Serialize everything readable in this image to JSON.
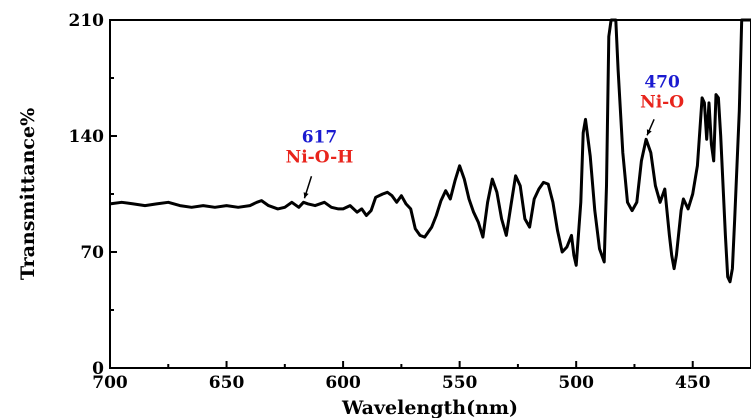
{
  "chart_data": {
    "type": "line",
    "xlabel": "Wavelength(nm)",
    "ylabel": "Transmittance%",
    "xlim": [
      700,
      425
    ],
    "ylim": [
      0,
      210
    ],
    "x_ticks": [
      700,
      650,
      600,
      550,
      500,
      450
    ],
    "y_ticks": [
      0,
      70,
      140,
      210
    ],
    "grid": false,
    "colors": {
      "line": "#000000",
      "number": "#1a1ad0",
      "label": "#e8241c"
    },
    "series": [
      {
        "points": [
          [
            700,
            99
          ],
          [
            695,
            100
          ],
          [
            690,
            99
          ],
          [
            685,
            98
          ],
          [
            680,
            99
          ],
          [
            675,
            100
          ],
          [
            670,
            98
          ],
          [
            665,
            97
          ],
          [
            660,
            98
          ],
          [
            655,
            97
          ],
          [
            650,
            98
          ],
          [
            645,
            97
          ],
          [
            640,
            98
          ],
          [
            637,
            100
          ],
          [
            635,
            101
          ],
          [
            632,
            98
          ],
          [
            628,
            96
          ],
          [
            625,
            97
          ],
          [
            622,
            100
          ],
          [
            619,
            97
          ],
          [
            617,
            100
          ],
          [
            615,
            99
          ],
          [
            612,
            98
          ],
          [
            608,
            100
          ],
          [
            605,
            97
          ],
          [
            602,
            96
          ],
          [
            600,
            96
          ],
          [
            597,
            98
          ],
          [
            594,
            94
          ],
          [
            592,
            96
          ],
          [
            590,
            92
          ],
          [
            588,
            95
          ],
          [
            586,
            103
          ],
          [
            583,
            105
          ],
          [
            581,
            106
          ],
          [
            579,
            104
          ],
          [
            577,
            100
          ],
          [
            575,
            104
          ],
          [
            573,
            99
          ],
          [
            571,
            96
          ],
          [
            569,
            84
          ],
          [
            567,
            80
          ],
          [
            565,
            79
          ],
          [
            562,
            85
          ],
          [
            560,
            92
          ],
          [
            558,
            101
          ],
          [
            556,
            107
          ],
          [
            554,
            102
          ],
          [
            552,
            113
          ],
          [
            550,
            122
          ],
          [
            548,
            114
          ],
          [
            546,
            102
          ],
          [
            544,
            94
          ],
          [
            542,
            88
          ],
          [
            540,
            79
          ],
          [
            538,
            100
          ],
          [
            536,
            114
          ],
          [
            534,
            106
          ],
          [
            532,
            90
          ],
          [
            530,
            80
          ],
          [
            528,
            98
          ],
          [
            526,
            116
          ],
          [
            524,
            110
          ],
          [
            522,
            90
          ],
          [
            520,
            85
          ],
          [
            518,
            102
          ],
          [
            516,
            108
          ],
          [
            514,
            112
          ],
          [
            512,
            111
          ],
          [
            510,
            100
          ],
          [
            508,
            83
          ],
          [
            506,
            70
          ],
          [
            504,
            73
          ],
          [
            502,
            80
          ],
          [
            501,
            68
          ],
          [
            500,
            62
          ],
          [
            498,
            100
          ],
          [
            497,
            142
          ],
          [
            496,
            150
          ],
          [
            494,
            128
          ],
          [
            492,
            95
          ],
          [
            490,
            72
          ],
          [
            488,
            64
          ],
          [
            487,
            110
          ],
          [
            486,
            200
          ],
          [
            485,
            210
          ],
          [
            484,
            210
          ],
          [
            483,
            210
          ],
          [
            482,
            180
          ],
          [
            480,
            130
          ],
          [
            478,
            100
          ],
          [
            476,
            95
          ],
          [
            474,
            100
          ],
          [
            472,
            125
          ],
          [
            470,
            138
          ],
          [
            468,
            130
          ],
          [
            466,
            110
          ],
          [
            464,
            100
          ],
          [
            462,
            108
          ],
          [
            460,
            80
          ],
          [
            459,
            68
          ],
          [
            458,
            60
          ],
          [
            457,
            68
          ],
          [
            455,
            95
          ],
          [
            454,
            102
          ],
          [
            452,
            96
          ],
          [
            450,
            105
          ],
          [
            448,
            122
          ],
          [
            446,
            163
          ],
          [
            445,
            160
          ],
          [
            444,
            138
          ],
          [
            443,
            160
          ],
          [
            442,
            135
          ],
          [
            441,
            125
          ],
          [
            440,
            165
          ],
          [
            439,
            163
          ],
          [
            438,
            140
          ],
          [
            436,
            80
          ],
          [
            435,
            55
          ],
          [
            434,
            52
          ],
          [
            433,
            60
          ],
          [
            432,
            90
          ],
          [
            430,
            155
          ],
          [
            429,
            210
          ],
          [
            428,
            210
          ],
          [
            427,
            210
          ],
          [
            426,
            210
          ],
          [
            425,
            210
          ]
        ]
      }
    ],
    "annotations": [
      {
        "number": "617",
        "label": "Ni-O-H",
        "x": 617,
        "y": 100
      },
      {
        "number": "470",
        "label": "Ni-O",
        "x": 470,
        "y": 138
      }
    ]
  }
}
